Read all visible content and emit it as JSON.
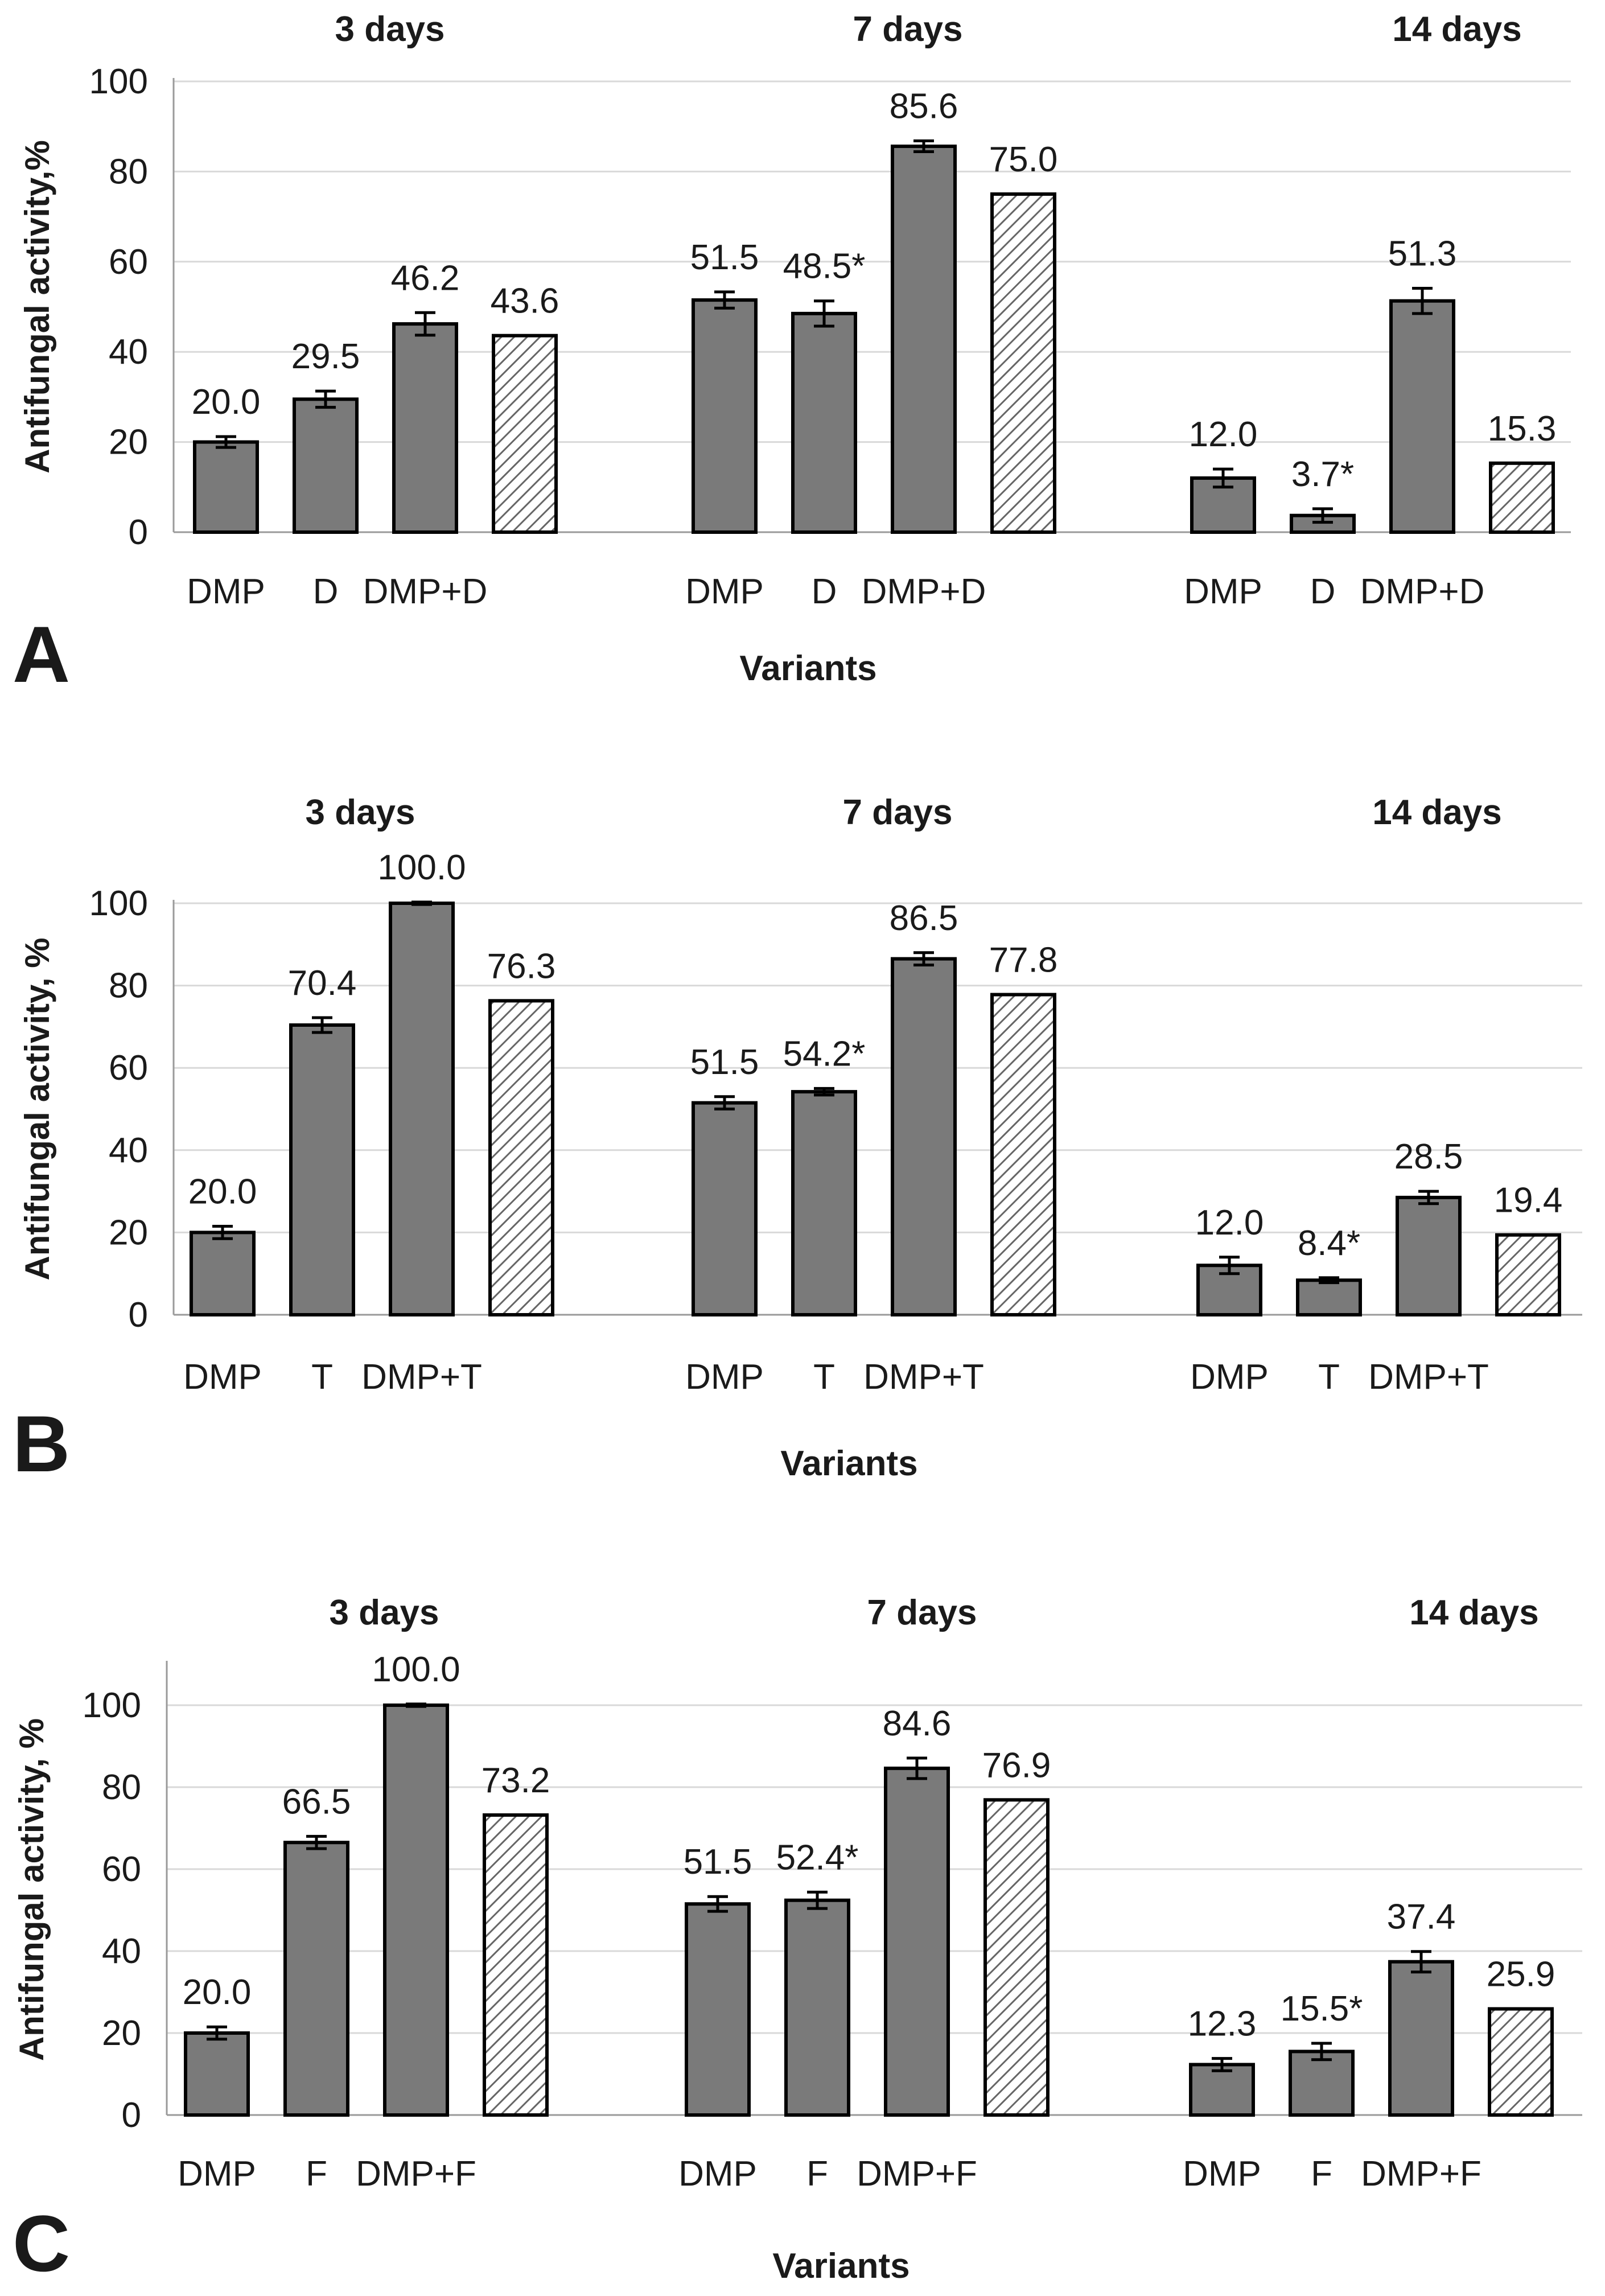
{
  "chart_data": [
    {
      "panel": "A",
      "type": "bar",
      "ylabel": "Antifungal activity,%",
      "xlabel": "Variants",
      "ylim": [
        0,
        100
      ],
      "yticks": [
        "0",
        "20",
        "40",
        "60",
        "80",
        "100"
      ],
      "groups": [
        {
          "title": "3 days",
          "bars": [
            {
              "category": "DMP",
              "value": 20.0,
              "label": "20.0",
              "err": 1.2,
              "hatched": false
            },
            {
              "category": "D",
              "value": 29.5,
              "label": "29.5",
              "err": 1.8,
              "hatched": false
            },
            {
              "category": "DMP+D",
              "value": 46.2,
              "label": "46.2",
              "err": 2.5,
              "hatched": false
            },
            {
              "category": "",
              "value": 43.6,
              "label": "43.6",
              "err": 0,
              "hatched": true
            }
          ]
        },
        {
          "title": "7 days",
          "bars": [
            {
              "category": "DMP",
              "value": 51.5,
              "label": "51.5",
              "err": 1.8,
              "hatched": false
            },
            {
              "category": "D",
              "value": 48.5,
              "label": "48.5*",
              "err": 2.8,
              "hatched": false
            },
            {
              "category": "DMP+D",
              "value": 85.6,
              "label": "85.6",
              "err": 1.2,
              "hatched": false
            },
            {
              "category": "",
              "value": 75.0,
              "label": "75.0",
              "err": 0,
              "hatched": true
            }
          ]
        },
        {
          "title": "14 days",
          "bars": [
            {
              "category": "DMP",
              "value": 12.0,
              "label": "12.0",
              "err": 2.0,
              "hatched": false
            },
            {
              "category": "D",
              "value": 3.7,
              "label": "3.7*",
              "err": 1.5,
              "hatched": false
            },
            {
              "category": "DMP+D",
              "value": 51.3,
              "label": "51.3",
              "err": 2.8,
              "hatched": false
            },
            {
              "category": "",
              "value": 15.3,
              "label": "15.3",
              "err": 0,
              "hatched": true
            }
          ]
        }
      ]
    },
    {
      "panel": "B",
      "type": "bar",
      "ylabel": "Antifungal activity, %",
      "xlabel": "Variants",
      "ylim": [
        0,
        100
      ],
      "yticks": [
        "0",
        "20",
        "40",
        "60",
        "80",
        "100"
      ],
      "groups": [
        {
          "title": "3 days",
          "bars": [
            {
              "category": "DMP",
              "value": 20.0,
              "label": "20.0",
              "err": 1.5,
              "hatched": false
            },
            {
              "category": "T",
              "value": 70.4,
              "label": "70.4",
              "err": 1.8,
              "hatched": false
            },
            {
              "category": "DMP+T",
              "value": 100.0,
              "label": "100.0",
              "err": 0.3,
              "hatched": false
            },
            {
              "category": "",
              "value": 76.3,
              "label": "76.3",
              "err": 0,
              "hatched": true
            }
          ]
        },
        {
          "title": "7 days",
          "bars": [
            {
              "category": "DMP",
              "value": 51.5,
              "label": "51.5",
              "err": 1.5,
              "hatched": false
            },
            {
              "category": "T",
              "value": 54.2,
              "label": "54.2*",
              "err": 0.8,
              "hatched": false
            },
            {
              "category": "DMP+T",
              "value": 86.5,
              "label": "86.5",
              "err": 1.5,
              "hatched": false
            },
            {
              "category": "",
              "value": 77.8,
              "label": "77.8",
              "err": 0,
              "hatched": true
            }
          ]
        },
        {
          "title": "14 days",
          "bars": [
            {
              "category": "DMP",
              "value": 12.0,
              "label": "12.0",
              "err": 2.0,
              "hatched": false
            },
            {
              "category": "T",
              "value": 8.4,
              "label": "8.4*",
              "err": 0.6,
              "hatched": false
            },
            {
              "category": "DMP+T",
              "value": 28.5,
              "label": "28.5",
              "err": 1.5,
              "hatched": false
            },
            {
              "category": "",
              "value": 19.4,
              "label": "19.4",
              "err": 0,
              "hatched": true
            }
          ]
        }
      ]
    },
    {
      "panel": "C",
      "type": "bar",
      "ylabel": "Antifungal activity, %",
      "xlabel": "Variants",
      "ylim": [
        0,
        110
      ],
      "yticks": [
        "0",
        "20",
        "40",
        "60",
        "80",
        "100"
      ],
      "groups": [
        {
          "title": "3 days",
          "bars": [
            {
              "category": "DMP",
              "value": 20.0,
              "label": "20.0",
              "err": 1.5,
              "hatched": false
            },
            {
              "category": "F",
              "value": 66.5,
              "label": "66.5",
              "err": 1.5,
              "hatched": false
            },
            {
              "category": "DMP+F",
              "value": 100.0,
              "label": "100.0",
              "err": 0.3,
              "hatched": false
            },
            {
              "category": "",
              "value": 73.2,
              "label": "73.2",
              "err": 0,
              "hatched": true
            }
          ]
        },
        {
          "title": "7 days",
          "bars": [
            {
              "category": "DMP",
              "value": 51.5,
              "label": "51.5",
              "err": 1.8,
              "hatched": false
            },
            {
              "category": "F",
              "value": 52.4,
              "label": "52.4*",
              "err": 2.0,
              "hatched": false
            },
            {
              "category": "DMP+F",
              "value": 84.6,
              "label": "84.6",
              "err": 2.5,
              "hatched": false
            },
            {
              "category": "",
              "value": 76.9,
              "label": "76.9",
              "err": 0,
              "hatched": true
            }
          ]
        },
        {
          "title": "14 days",
          "bars": [
            {
              "category": "DMP",
              "value": 12.3,
              "label": "12.3",
              "err": 1.5,
              "hatched": false
            },
            {
              "category": "F",
              "value": 15.5,
              "label": "15.5*",
              "err": 2.0,
              "hatched": false
            },
            {
              "category": "DMP+F",
              "value": 37.4,
              "label": "37.4",
              "err": 2.5,
              "hatched": false
            },
            {
              "category": "",
              "value": 25.9,
              "label": "25.9",
              "err": 0,
              "hatched": true
            }
          ]
        }
      ]
    }
  ],
  "colors": {
    "bar_fill": "#7a7a7a",
    "bar_stroke": "#000000",
    "hatch_line": "#666666",
    "gridline": "#d9d9d9",
    "axis": "#9a9a9a",
    "text": "#1a1a1a"
  }
}
